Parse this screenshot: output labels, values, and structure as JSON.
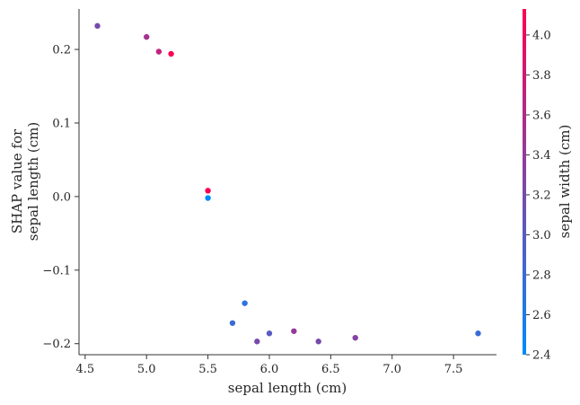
{
  "chart_data": {
    "type": "scatter",
    "title": "",
    "xlabel": "sepal length (cm)",
    "ylabel_lines": [
      "SHAP value for",
      "sepal length (cm)"
    ],
    "xlim": [
      4.45,
      7.85
    ],
    "ylim": [
      -0.215,
      0.255
    ],
    "xticks": [
      4.5,
      5.0,
      5.5,
      6.0,
      6.5,
      7.0,
      7.5
    ],
    "xtick_labels": [
      "4.5",
      "5.0",
      "5.5",
      "6.0",
      "6.5",
      "7.0",
      "7.5"
    ],
    "yticks": [
      -0.2,
      -0.1,
      0.0,
      0.1,
      0.2
    ],
    "ytick_labels": [
      "−0.2",
      "−0.1",
      "0.0",
      "0.1",
      "0.2"
    ],
    "grid": false,
    "points": [
      {
        "x": 4.6,
        "y": 0.232,
        "c": 3.2
      },
      {
        "x": 5.0,
        "y": 0.217,
        "c": 3.5
      },
      {
        "x": 5.1,
        "y": 0.197,
        "c": 3.7
      },
      {
        "x": 5.2,
        "y": 0.194,
        "c": 4.1
      },
      {
        "x": 5.5,
        "y": 0.008,
        "c": 4.2
      },
      {
        "x": 5.5,
        "y": -0.002,
        "c": 2.4
      },
      {
        "x": 5.8,
        "y": -0.145,
        "c": 2.7
      },
      {
        "x": 5.7,
        "y": -0.172,
        "c": 2.8
      },
      {
        "x": 6.0,
        "y": -0.186,
        "c": 3.0
      },
      {
        "x": 5.9,
        "y": -0.197,
        "c": 3.2
      },
      {
        "x": 6.2,
        "y": -0.183,
        "c": 3.4
      },
      {
        "x": 6.4,
        "y": -0.197,
        "c": 3.2
      },
      {
        "x": 6.7,
        "y": -0.192,
        "c": 3.3
      },
      {
        "x": 7.7,
        "y": -0.186,
        "c": 2.8
      }
    ],
    "colorbar": {
      "label": "sepal width (cm)",
      "range": [
        2.4,
        4.13
      ],
      "ticks": [
        2.4,
        2.6,
        2.8,
        3.0,
        3.2,
        3.4,
        3.6,
        3.8,
        4.0
      ],
      "tick_labels": [
        "2.4",
        "2.6",
        "2.8",
        "3.0",
        "3.2",
        "3.4",
        "3.6",
        "3.8",
        "4.0"
      ],
      "colors": [
        "#008bfb",
        "#ff0051"
      ]
    }
  }
}
